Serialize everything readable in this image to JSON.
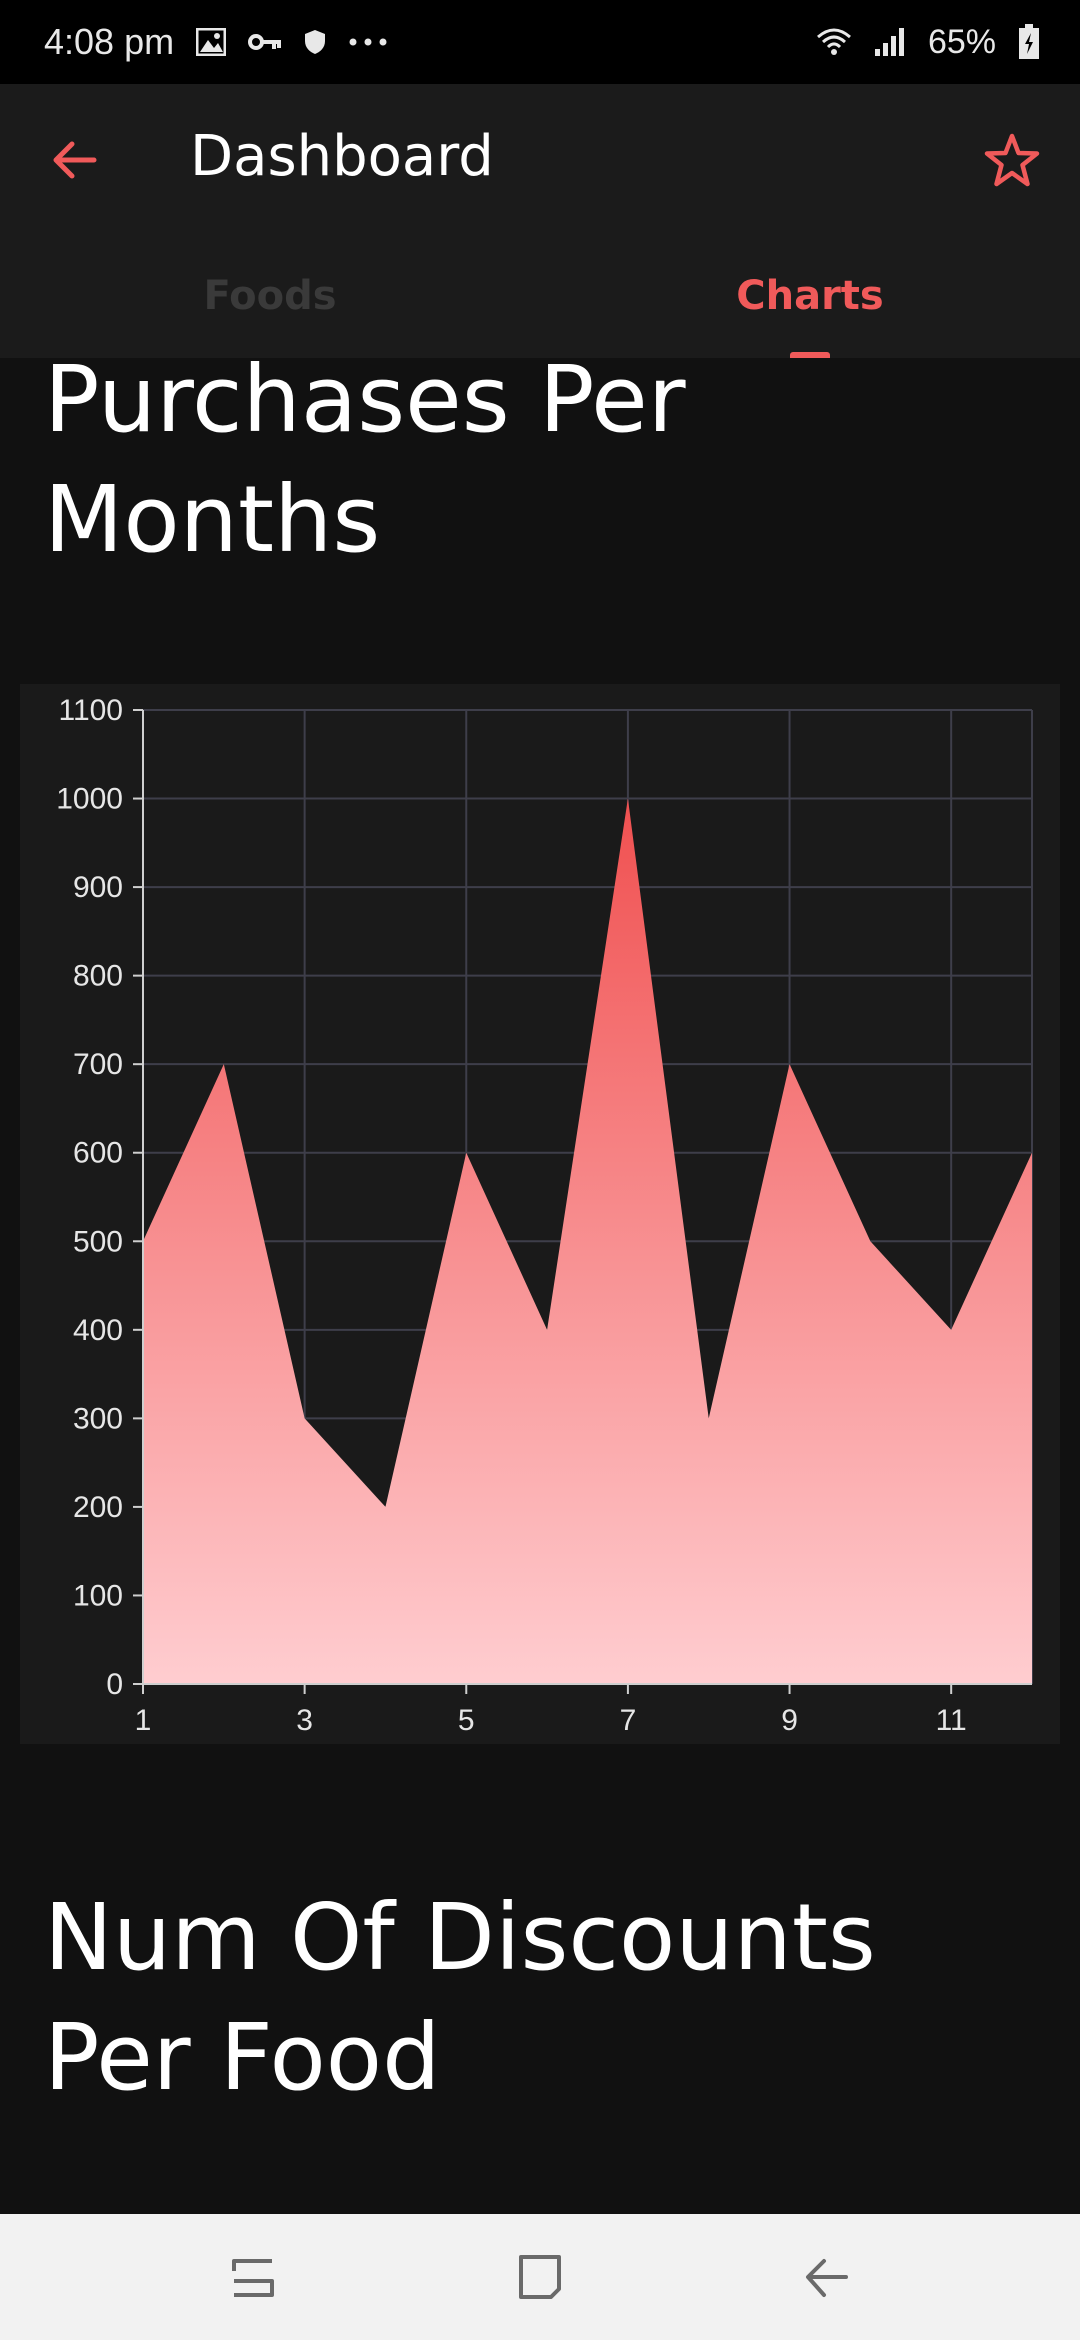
{
  "status_bar": {
    "time": "4:08 pm",
    "battery": "65%",
    "left_icons": [
      "image-icon",
      "key-icon",
      "shield-icon",
      "more-icon"
    ],
    "right_icons": [
      "wifi-icon",
      "signal-icon",
      "battery-icon"
    ]
  },
  "app_bar": {
    "title": "Dashboard",
    "accent_color": "#f05a5a"
  },
  "tabs": [
    {
      "label": "Foods",
      "selected": false
    },
    {
      "label": "Charts",
      "selected": true
    }
  ],
  "sections": {
    "purchases_title_line1": "Purchases Per",
    "purchases_title_line2": "Months",
    "discounts_title_line1": "Num Of Discounts",
    "discounts_title_line2": "Per Food"
  },
  "chart_data": {
    "type": "area",
    "x": [
      1,
      2,
      3,
      4,
      5,
      6,
      7,
      8,
      9,
      10,
      11,
      12
    ],
    "values": [
      500,
      700,
      300,
      200,
      600,
      400,
      1000,
      300,
      700,
      500,
      400,
      600
    ],
    "xticks": [
      1,
      3,
      5,
      7,
      9,
      11
    ],
    "yticks": [
      0,
      100,
      200,
      300,
      400,
      500,
      600,
      700,
      800,
      900,
      1000,
      1100
    ],
    "xlim": [
      1,
      12
    ],
    "ylim": [
      0,
      1100
    ],
    "grid": true,
    "fill_top_color": "#f05050",
    "fill_bottom_color": "#ffcdd0"
  },
  "nav_bar": {
    "icons": [
      "recents-icon",
      "home-icon",
      "back-nav-icon"
    ]
  }
}
